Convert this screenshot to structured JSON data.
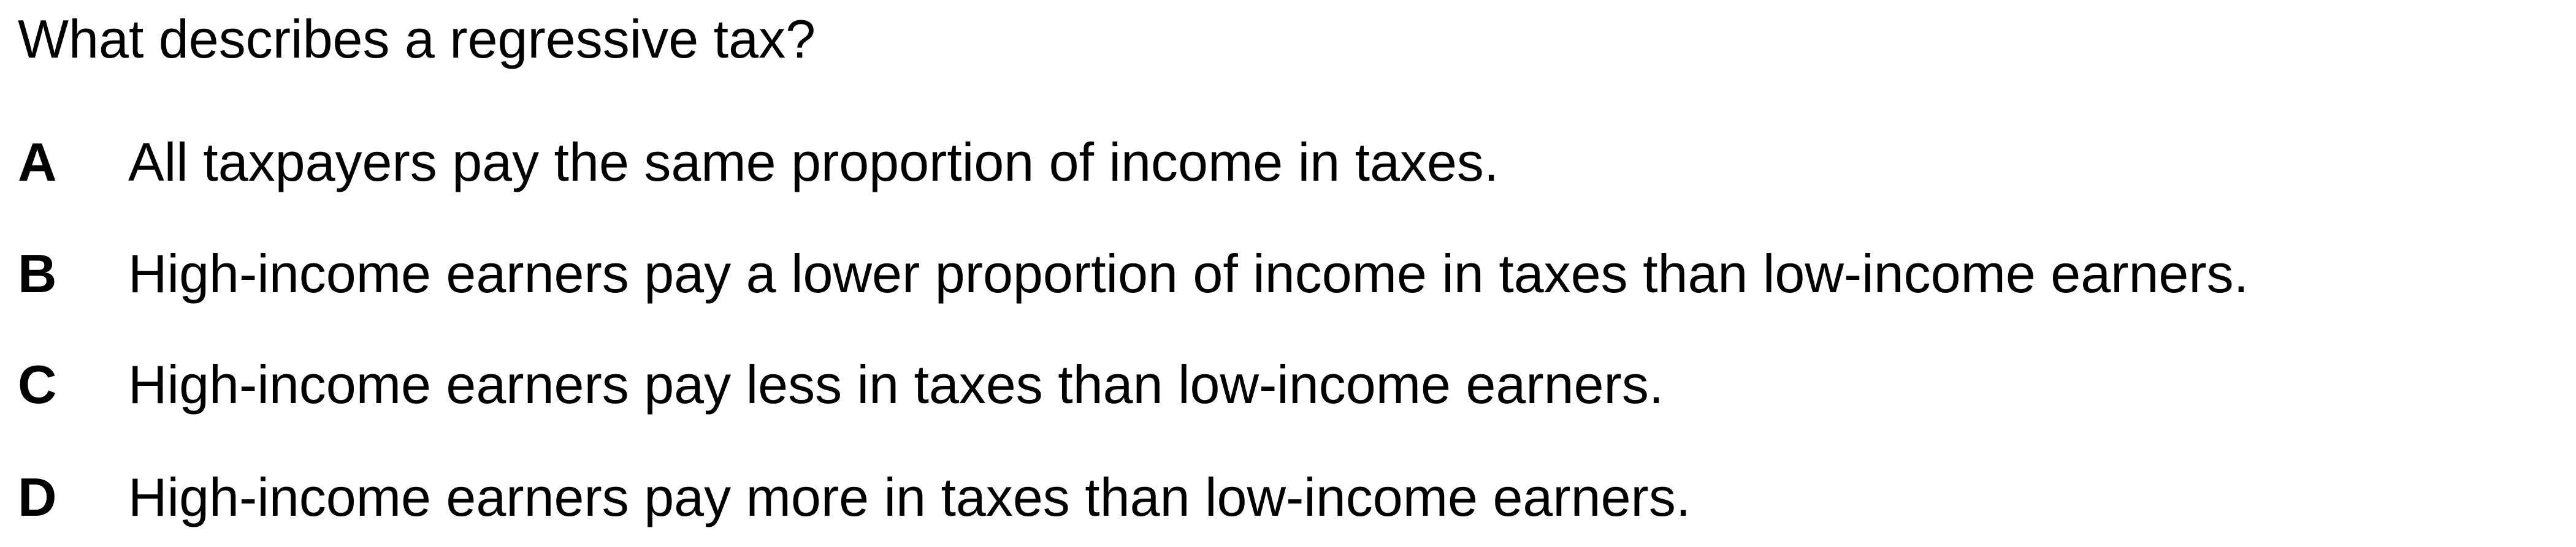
{
  "question": {
    "text": "What describes a regressive tax?"
  },
  "options": [
    {
      "letter": "A",
      "text": "All taxpayers pay the same proportion of income in taxes."
    },
    {
      "letter": "B",
      "text": "High-income earners pay a lower proportion of income in taxes than low-income earners."
    },
    {
      "letter": "C",
      "text": "High-income earners pay less in taxes than low-income earners."
    },
    {
      "letter": "D",
      "text": "High-income earners pay more in taxes than low-income earners."
    }
  ]
}
